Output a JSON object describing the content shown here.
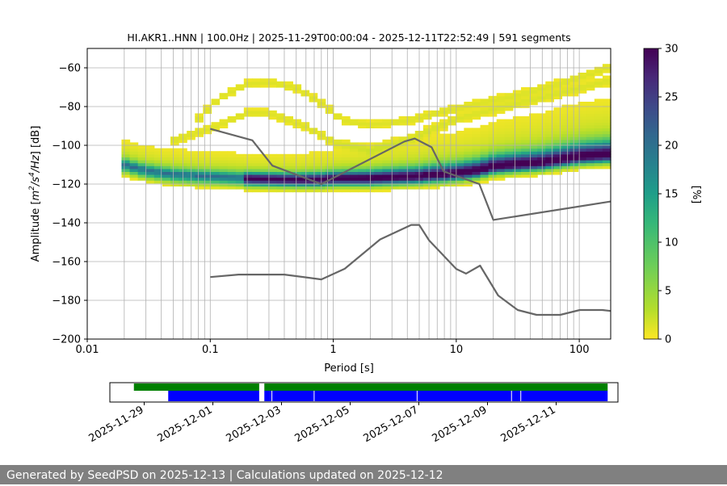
{
  "chart_data": {
    "type": "heatmap",
    "title": "HI.AKR1..HNN | 100.0Hz | 2025-11-29T00:00:04 - 2025-12-11T22:52:49 | 591 segments",
    "xlabel": "Period [s]",
    "ylabel_base": "Amplitude [",
    "ylabel_m": "m",
    "ylabel_s": "/s",
    "ylabel_hz": "/Hz",
    "ylabel_end": "] [dB]",
    "ylabel_sup_2": "2",
    "ylabel_sup_4": "4",
    "x_scale": "log",
    "xlim": [
      0.01,
      180
    ],
    "ylim": [
      -200,
      -50
    ],
    "x_ticks": [
      0.01,
      0.1,
      1,
      10,
      100
    ],
    "x_tick_labels": [
      "0.01",
      "0.1",
      "1",
      "10",
      "100"
    ],
    "y_ticks": [
      -200,
      -180,
      -160,
      -140,
      -120,
      -100,
      -80,
      -60
    ],
    "y_tick_labels": [
      "−200",
      "−180",
      "−160",
      "−140",
      "−120",
      "−100",
      "−80",
      "−60"
    ],
    "grid": true,
    "colorbar": {
      "label": "[%]",
      "range": [
        0,
        30
      ],
      "ticks": [
        0,
        5,
        10,
        15,
        20,
        25,
        30
      ],
      "tick_labels": [
        "0",
        "5",
        "10",
        "15",
        "20",
        "25",
        "30"
      ],
      "colormap": "viridis_r"
    },
    "mode_curve": {
      "x": [
        0.02,
        0.03,
        0.05,
        0.1,
        0.2,
        0.5,
        0.8,
        1,
        2,
        3,
        5,
        6,
        8,
        10,
        15,
        20,
        30,
        50,
        100,
        180
      ],
      "y": [
        -111,
        -114,
        -116,
        -117,
        -118,
        -118.5,
        -118.5,
        -118,
        -118,
        -117.5,
        -117,
        -116.5,
        -116,
        -115.5,
        -114,
        -112,
        -111,
        -110,
        -107,
        -106
      ]
    },
    "density_ridges": [
      {
        "name": "upper-arc-1",
        "x": [
          0.08,
          0.12,
          0.2,
          0.3,
          0.5,
          0.8,
          1.2,
          2,
          4,
          8,
          15,
          30,
          60,
          120,
          180
        ],
        "y": [
          -87,
          -76,
          -69,
          -68,
          -71,
          -79,
          -88,
          -90,
          -88,
          -83,
          -79,
          -75,
          -70,
          -64,
          -60
        ]
      },
      {
        "name": "upper-arc-2",
        "x": [
          0.05,
          0.1,
          0.2,
          0.3,
          0.6,
          1,
          2,
          4,
          6,
          10,
          20,
          50,
          100,
          180
        ],
        "y": [
          -98,
          -92,
          -84,
          -84,
          -91,
          -99,
          -103,
          -98,
          -93,
          -87,
          -82,
          -76,
          -71,
          -67
        ]
      }
    ],
    "nlnm": {
      "x": [
        0.1,
        0.17,
        0.4,
        0.8,
        1.24,
        2.4,
        4.3,
        5,
        6,
        10,
        12,
        15.6,
        21.9,
        31.6,
        45,
        70,
        101,
        154,
        180
      ],
      "y": [
        -168,
        -166.7,
        -166.7,
        -169.2,
        -163.7,
        -148.6,
        -141.1,
        -141.1,
        -149,
        -163.8,
        -166.2,
        -162.1,
        -177.5,
        -185,
        -187.5,
        -187.5,
        -185,
        -185,
        -185.5
      ]
    },
    "nhnm": {
      "x": [
        0.1,
        0.22,
        0.32,
        0.8,
        3.8,
        4.6,
        6.3,
        7.9,
        15.4,
        20,
        180
      ],
      "y": [
        -91.5,
        -97.4,
        -110.5,
        -120,
        -98,
        -96.5,
        -101,
        -113.5,
        -120,
        -138.5,
        -129
      ]
    },
    "availability": {
      "start": "2025-11-28",
      "end": "2025-12-12.8",
      "date_ticks": [
        "2025-11-29",
        "2025-12-01",
        "2025-12-03",
        "2025-12-05",
        "2025-12-07",
        "2025-12-09",
        "2025-12-11"
      ],
      "green_spans": [
        [
          "2025-11-28.7",
          "2025-12-02.35"
        ],
        [
          "2025-12-02.5",
          "2025-12-12.5"
        ]
      ],
      "blue_spans": [
        [
          "2025-11-29.7",
          "2025-12-02.35"
        ],
        [
          "2025-12-02.5",
          "2025-12-12.5"
        ]
      ],
      "blue_gaps": [
        "2025-12-02.72",
        "2025-12-03.95",
        "2025-12-06.95",
        "2025-12-09.7",
        "2025-12-09.97"
      ],
      "green_color": "#008000",
      "blue_color": "#0000ff"
    }
  },
  "footer": {
    "text": "Generated by SeedPSD on 2025-12-13 | Calculations updated on 2025-12-12"
  }
}
